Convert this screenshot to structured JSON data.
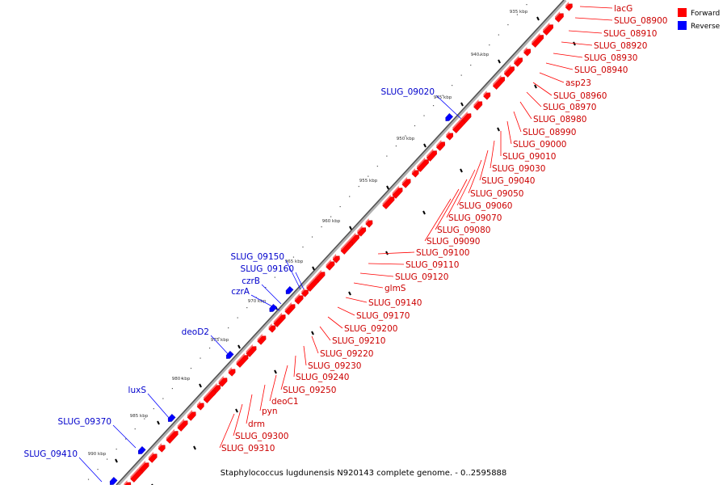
{
  "caption": "Staphylococcus lugdunensis N920143 complete genome. - 0..2595888",
  "legend": [
    {
      "label": "Forward",
      "color": "#ff0000"
    },
    {
      "label": "Reverse",
      "color": "#0000ff"
    }
  ],
  "ticks": [
    "935 kbp",
    "940 kbp",
    "945 kbp",
    "950 kbp",
    "955 kbp",
    "960 kbp",
    "965 kbp",
    "970 kbp",
    "975 kbp",
    "980 kbp",
    "985 kbp",
    "990 kbp"
  ],
  "forward_genes": [
    "lacG",
    "SLUG_08900",
    "SLUG_08910",
    "SLUG_08920",
    "SLUG_08930",
    "SLUG_08940",
    "asp23",
    "SLUG_08960",
    "SLUG_08970",
    "SLUG_08980",
    "SLUG_08990",
    "SLUG_09000",
    "SLUG_09010",
    "SLUG_09030",
    "SLUG_09040",
    "SLUG_09050",
    "SLUG_09060",
    "SLUG_09070",
    "SLUG_09080",
    "SLUG_09090",
    "SLUG_09100",
    "SLUG_09110",
    "SLUG_09120",
    "glmS",
    "SLUG_09140",
    "SLUG_09170",
    "SLUG_09200",
    "SLUG_09210",
    "SLUG_09220",
    "SLUG_09230",
    "SLUG_09240",
    "SLUG_09250",
    "deoC1",
    "pyn",
    "drm",
    "SLUG_09300",
    "SLUG_09310"
  ],
  "reverse_genes": [
    "SLUG_09020",
    "SLUG_09150",
    "SLUG_09160",
    "czrB",
    "czrA",
    "deoD2",
    "luxS",
    "SLUG_09370",
    "SLUG_09410"
  ]
}
